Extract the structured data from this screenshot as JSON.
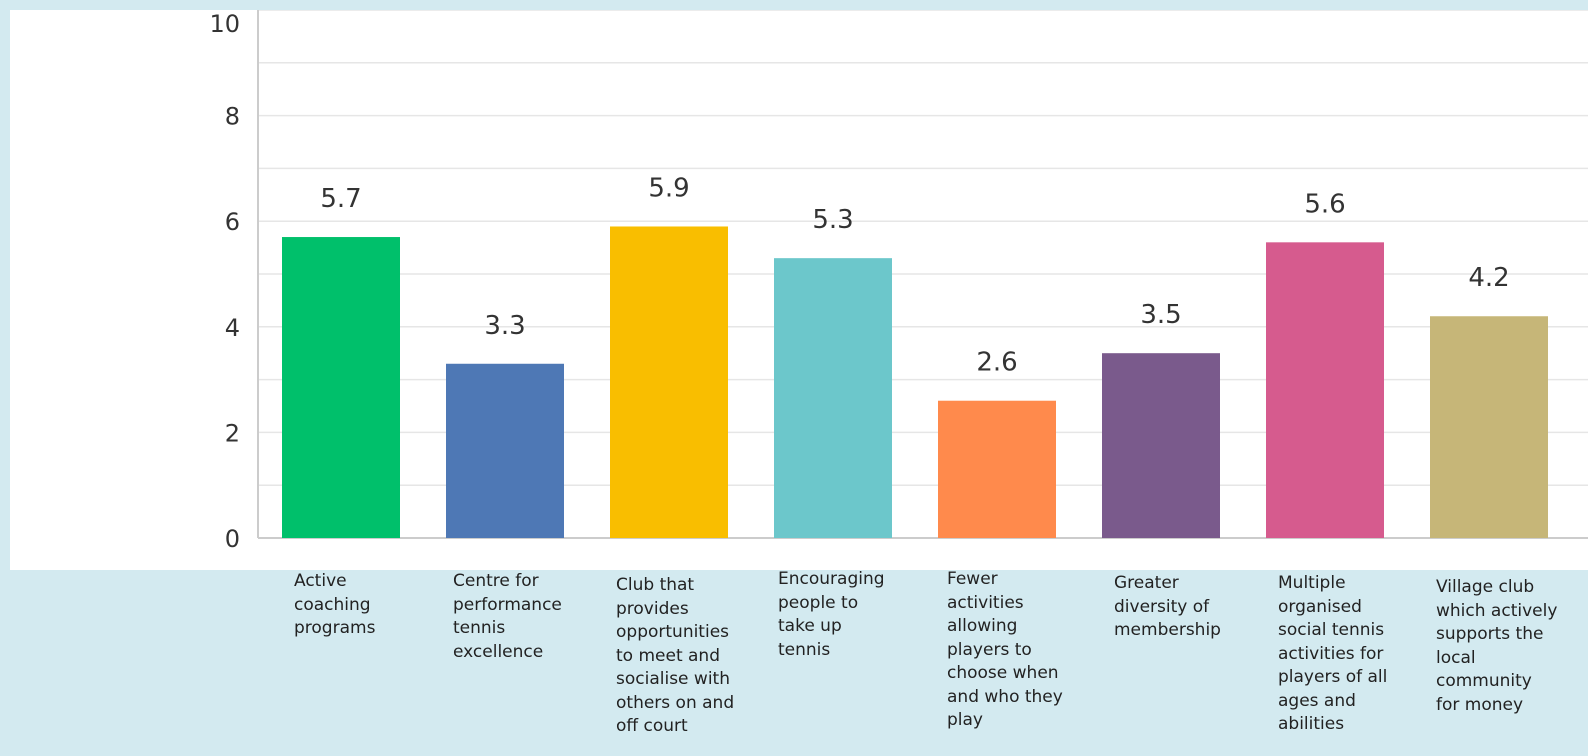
{
  "chart_data": {
    "type": "bar",
    "categories": [
      "Active\ncoaching\nprograms",
      "Centre for\nperformance\ntennis\nexcellence",
      "Club that\nprovides\nopportunities\nto meet and\nsocialise with\nothers on and\noff court",
      "Encouraging\npeople to\ntake up\ntennis",
      "Fewer\nactivities\nallowing\nplayers to\nchoose when\nand who they\nplay",
      "Greater\ndiversity of\nmembership",
      "Multiple\norganised\nsocial tennis\nactivities for\nplayers of all\nages and\nabilities",
      "Village club\nwhich actively\nsupports the\nlocal\ncommunity\nfor money"
    ],
    "values": [
      5.7,
      3.3,
      5.9,
      5.3,
      2.6,
      3.5,
      5.6,
      4.2
    ],
    "data_labels": [
      "5.7",
      "3.3",
      "5.9",
      "5.3",
      "2.6",
      "3.5",
      "5.6",
      "4.2"
    ],
    "colors": [
      "#00c06b",
      "#4e78b5",
      "#f9be00",
      "#6cc7cb",
      "#ff8a4c",
      "#7a5a8c",
      "#d65b8e",
      "#c6b678"
    ],
    "ylim": [
      0,
      10
    ],
    "yticks": [
      "0",
      "2",
      "4",
      "6",
      "8",
      "10"
    ],
    "grid": true,
    "title": "",
    "xlabel": "",
    "ylabel": ""
  }
}
